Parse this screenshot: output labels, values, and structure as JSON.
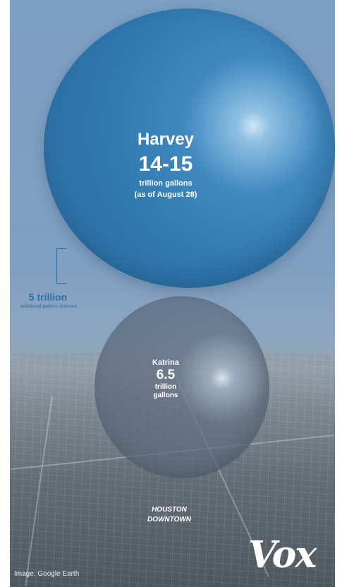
{
  "harvey": {
    "name": "Harvey",
    "value": "14-15",
    "unit": "trillion gallons",
    "note": "(as of August 28)"
  },
  "katrina": {
    "name": "Katrina",
    "value": "6.5",
    "unit_line1": "trillion",
    "unit_line2": "gallons"
  },
  "forecast": {
    "value": "5 trillion",
    "label": "additional gallons forecast"
  },
  "location_label_line1": "HOUSTON",
  "location_label_line2": "DOWNTOWN",
  "logo": "Vox",
  "credit": "Image: Google Earth",
  "colors": {
    "harvey_blue": "#3f88c0",
    "katrina_gray": "#5f6e80",
    "annotation_blue": "#2f6fa6"
  }
}
